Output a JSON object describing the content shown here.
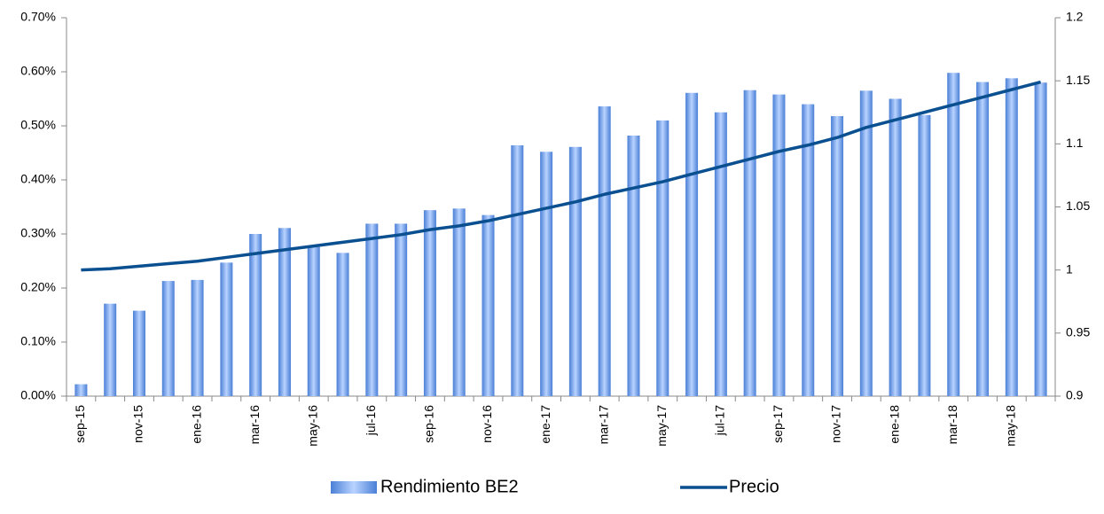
{
  "chart_data": {
    "type": "bar",
    "categories": [
      "sep-15",
      null,
      "nov-15",
      null,
      "ene-16",
      null,
      "mar-16",
      null,
      "may-16",
      null,
      "jul-16",
      null,
      "sep-16",
      null,
      "nov-16",
      null,
      "ene-17",
      null,
      "mar-17",
      null,
      "may-17",
      null,
      "jul-17",
      null,
      "sep-17",
      null,
      "nov-17",
      null,
      "ene-18",
      null,
      "mar-18",
      null,
      "may-18",
      null
    ],
    "series": [
      {
        "name": "Rendimiento BE2",
        "type": "bar",
        "color": "#4a7fd6",
        "values": [
          0.022,
          0.171,
          0.158,
          0.213,
          0.215,
          0.247,
          0.3,
          0.311,
          0.276,
          0.265,
          0.319,
          0.319,
          0.344,
          0.347,
          0.335,
          0.464,
          0.452,
          0.461,
          0.536,
          0.482,
          0.51,
          0.561,
          0.525,
          0.566,
          0.558,
          0.54,
          0.518,
          0.565,
          0.55,
          0.52,
          0.598,
          0.581,
          0.588,
          0.58
        ]
      },
      {
        "name": "Precio",
        "type": "line",
        "axis": "y2",
        "color": "#0a4f8f",
        "values": [
          1.0,
          1.001,
          1.003,
          1.005,
          1.007,
          1.01,
          1.013,
          1.016,
          1.019,
          1.022,
          1.025,
          1.028,
          1.032,
          1.035,
          1.039,
          1.044,
          1.049,
          1.054,
          1.06,
          1.065,
          1.07,
          1.076,
          1.082,
          1.088,
          1.094,
          1.099,
          1.105,
          1.113,
          1.119,
          1.125,
          1.131,
          1.137,
          1.143,
          1.149
        ]
      }
    ],
    "ylim": [
      0,
      0.7
    ],
    "yticks": [
      {
        "value": 0,
        "label": "0.00%"
      },
      {
        "value": 0.1,
        "label": "0.10%"
      },
      {
        "value": 0.2,
        "label": "0.20%"
      },
      {
        "value": 0.3,
        "label": "0.30%"
      },
      {
        "value": 0.4,
        "label": "0.40%"
      },
      {
        "value": 0.5,
        "label": "0.50%"
      },
      {
        "value": 0.6,
        "label": "0.60%"
      },
      {
        "value": 0.7,
        "label": "0.70%"
      }
    ],
    "y2lim": [
      0.9,
      1.2
    ],
    "y2ticks": [
      0.9,
      0.95,
      1,
      1.05,
      1.1,
      1.15,
      1.2
    ],
    "grid": false,
    "legend": "bottom"
  }
}
